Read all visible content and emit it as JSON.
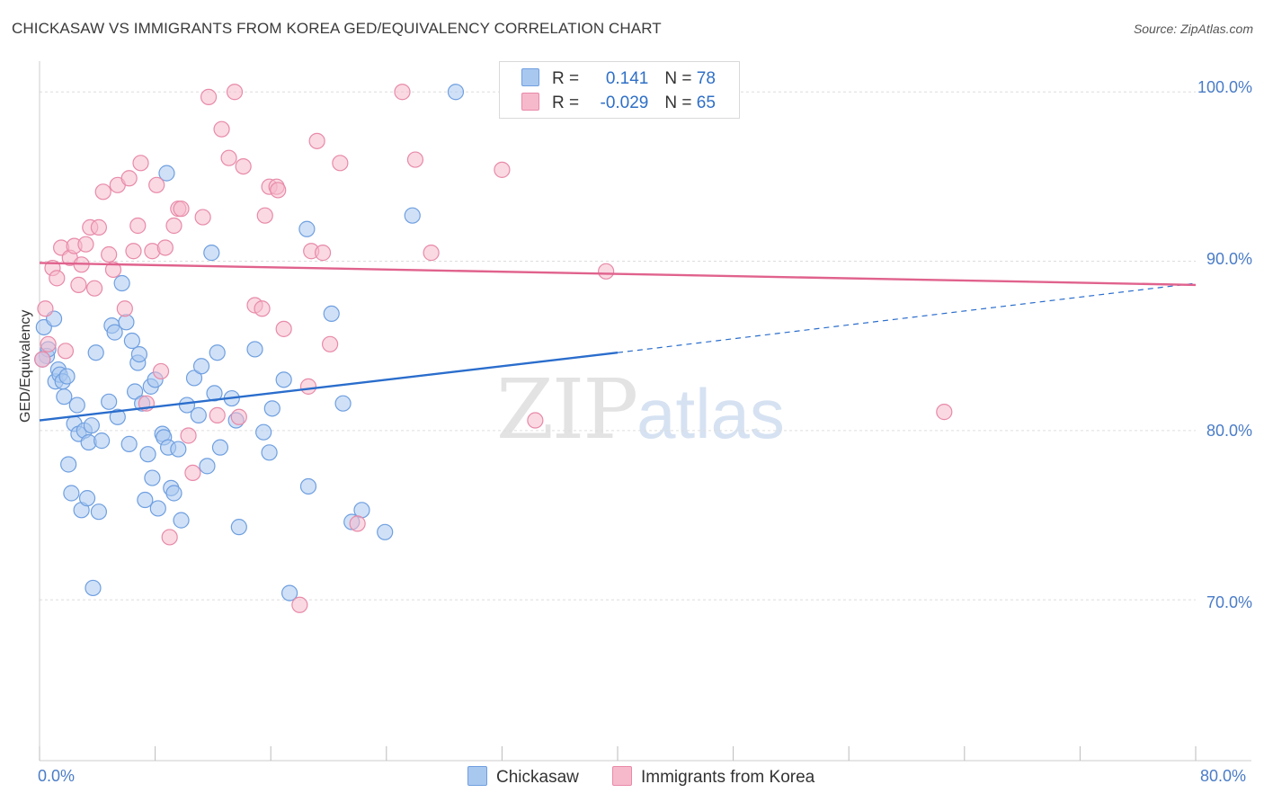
{
  "title": "CHICKASAW VS IMMIGRANTS FROM KOREA GED/EQUIVALENCY CORRELATION CHART",
  "source": "Source: ZipAtlas.com",
  "watermark": {
    "zip": "ZIP",
    "atlas": "atlas"
  },
  "legend": {
    "rows": [
      {
        "r_label": "R = ",
        "r_value": "0.141",
        "n_label": "N = ",
        "n_value": "78",
        "color": "#a9c8f0",
        "border": "#6f9fe0"
      },
      {
        "r_label": "R = ",
        "r_value": "-0.029",
        "n_label": "N = ",
        "n_value": "65",
        "color": "#f6b9cc",
        "border": "#e88aa8"
      }
    ]
  },
  "bottom_legend": [
    {
      "label": "Chickasaw",
      "color": "#a9c8f0",
      "border": "#6f9fe0"
    },
    {
      "label": "Immigrants from Korea",
      "color": "#f6b9cc",
      "border": "#e88aa8"
    }
  ],
  "chart_data": {
    "type": "scatter",
    "title": "CHICKASAW VS IMMIGRANTS FROM KOREA GED/EQUIVALENCY CORRELATION CHART",
    "xlabel": "",
    "ylabel": "GED/Equivalency",
    "xlim": [
      0,
      80
    ],
    "ylim": [
      60.5,
      101.5
    ],
    "x_tick_labels": [
      "0.0%",
      "80.0%"
    ],
    "y_ticks": [
      70,
      80,
      90,
      100
    ],
    "y_tick_labels": [
      "70.0%",
      "80.0%",
      "90.0%",
      "100.0%"
    ],
    "grid": true,
    "legend_position": "top-center",
    "series": [
      {
        "name": "Chickasaw",
        "color": "#6f9fe0",
        "fill": "#a9c8f0",
        "trend": {
          "x": [
            0,
            40
          ],
          "y": [
            80.6,
            84.6
          ],
          "dashed_to": [
            80,
            88.7
          ],
          "color": "#2a6dcc"
        },
        "points": [
          [
            0.3,
            86.1
          ],
          [
            0.5,
            84.4
          ],
          [
            0.6,
            84.8
          ],
          [
            1.0,
            86.6
          ],
          [
            1.1,
            82.9
          ],
          [
            1.3,
            83.6
          ],
          [
            1.4,
            83.3
          ],
          [
            1.6,
            82.9
          ],
          [
            1.7,
            82.0
          ],
          [
            1.9,
            83.2
          ],
          [
            2.0,
            78.0
          ],
          [
            2.2,
            76.3
          ],
          [
            2.4,
            80.4
          ],
          [
            2.6,
            81.5
          ],
          [
            2.7,
            79.8
          ],
          [
            2.9,
            75.3
          ],
          [
            3.1,
            80.0
          ],
          [
            3.3,
            76.0
          ],
          [
            3.4,
            79.3
          ],
          [
            3.6,
            80.3
          ],
          [
            3.7,
            70.7
          ],
          [
            3.9,
            84.6
          ],
          [
            4.1,
            75.2
          ],
          [
            4.3,
            79.4
          ],
          [
            4.8,
            81.7
          ],
          [
            5.0,
            86.2
          ],
          [
            5.2,
            85.8
          ],
          [
            5.4,
            80.8
          ],
          [
            5.7,
            88.7
          ],
          [
            6.0,
            86.4
          ],
          [
            6.2,
            79.2
          ],
          [
            6.4,
            85.3
          ],
          [
            6.6,
            82.3
          ],
          [
            6.8,
            84.0
          ],
          [
            6.9,
            84.5
          ],
          [
            7.1,
            81.6
          ],
          [
            7.3,
            75.9
          ],
          [
            7.5,
            78.6
          ],
          [
            7.7,
            82.6
          ],
          [
            7.8,
            77.2
          ],
          [
            8.0,
            83.0
          ],
          [
            8.2,
            75.4
          ],
          [
            8.5,
            79.8
          ],
          [
            8.6,
            79.6
          ],
          [
            8.8,
            95.2
          ],
          [
            8.9,
            79.0
          ],
          [
            9.1,
            76.6
          ],
          [
            9.3,
            76.3
          ],
          [
            9.6,
            78.9
          ],
          [
            9.8,
            74.7
          ],
          [
            10.2,
            81.5
          ],
          [
            10.7,
            83.1
          ],
          [
            11.0,
            80.9
          ],
          [
            11.2,
            83.8
          ],
          [
            11.6,
            77.9
          ],
          [
            11.9,
            90.5
          ],
          [
            12.1,
            82.2
          ],
          [
            12.3,
            84.6
          ],
          [
            12.5,
            79.0
          ],
          [
            13.3,
            81.9
          ],
          [
            13.6,
            80.6
          ],
          [
            13.8,
            74.3
          ],
          [
            14.9,
            84.8
          ],
          [
            15.5,
            79.9
          ],
          [
            15.9,
            78.7
          ],
          [
            16.1,
            81.3
          ],
          [
            16.9,
            83.0
          ],
          [
            17.3,
            70.4
          ],
          [
            18.5,
            91.9
          ],
          [
            18.6,
            76.7
          ],
          [
            20.2,
            86.9
          ],
          [
            21.0,
            81.6
          ],
          [
            21.6,
            74.6
          ],
          [
            22.3,
            75.3
          ],
          [
            23.9,
            74.0
          ],
          [
            25.8,
            92.7
          ],
          [
            28.8,
            100.0
          ],
          [
            0.2,
            84.2
          ]
        ]
      },
      {
        "name": "Immigrants from Korea",
        "color": "#e88aa8",
        "fill": "#f6b9cc",
        "trend": {
          "x": [
            0,
            80
          ],
          "y": [
            89.9,
            88.6
          ],
          "color": "#e0628d"
        },
        "points": [
          [
            0.2,
            84.2
          ],
          [
            0.4,
            87.2
          ],
          [
            0.6,
            85.1
          ],
          [
            0.9,
            89.6
          ],
          [
            1.2,
            89.0
          ],
          [
            1.5,
            90.8
          ],
          [
            1.8,
            84.7
          ],
          [
            2.1,
            90.2
          ],
          [
            2.4,
            90.9
          ],
          [
            2.7,
            88.6
          ],
          [
            2.9,
            89.8
          ],
          [
            3.2,
            91.0
          ],
          [
            3.5,
            92.0
          ],
          [
            3.8,
            88.4
          ],
          [
            4.1,
            92.0
          ],
          [
            4.4,
            94.1
          ],
          [
            4.8,
            90.4
          ],
          [
            5.1,
            89.5
          ],
          [
            5.4,
            94.5
          ],
          [
            5.9,
            87.2
          ],
          [
            6.2,
            94.9
          ],
          [
            6.5,
            90.6
          ],
          [
            6.8,
            92.1
          ],
          [
            7.0,
            95.8
          ],
          [
            7.4,
            81.6
          ],
          [
            7.8,
            90.6
          ],
          [
            8.1,
            94.5
          ],
          [
            8.4,
            83.5
          ],
          [
            8.7,
            90.8
          ],
          [
            9.0,
            73.7
          ],
          [
            9.3,
            92.1
          ],
          [
            9.6,
            93.1
          ],
          [
            9.8,
            93.1
          ],
          [
            10.3,
            79.7
          ],
          [
            10.6,
            77.5
          ],
          [
            11.3,
            92.6
          ],
          [
            11.7,
            99.7
          ],
          [
            12.3,
            80.9
          ],
          [
            12.6,
            97.8
          ],
          [
            13.1,
            96.1
          ],
          [
            13.5,
            100.0
          ],
          [
            13.8,
            80.8
          ],
          [
            14.1,
            95.6
          ],
          [
            14.9,
            87.4
          ],
          [
            15.4,
            87.2
          ],
          [
            15.6,
            92.7
          ],
          [
            15.9,
            94.4
          ],
          [
            16.4,
            94.4
          ],
          [
            16.5,
            94.2
          ],
          [
            16.9,
            86.0
          ],
          [
            18.6,
            82.6
          ],
          [
            18.8,
            90.6
          ],
          [
            19.2,
            97.1
          ],
          [
            19.6,
            90.5
          ],
          [
            20.1,
            85.1
          ],
          [
            20.8,
            95.8
          ],
          [
            22.0,
            74.5
          ],
          [
            25.1,
            100.0
          ],
          [
            26.0,
            96.0
          ],
          [
            27.1,
            90.5
          ],
          [
            32.0,
            95.4
          ],
          [
            34.3,
            80.6
          ],
          [
            39.2,
            89.4
          ],
          [
            62.6,
            81.1
          ],
          [
            18.0,
            69.7
          ]
        ]
      }
    ]
  }
}
